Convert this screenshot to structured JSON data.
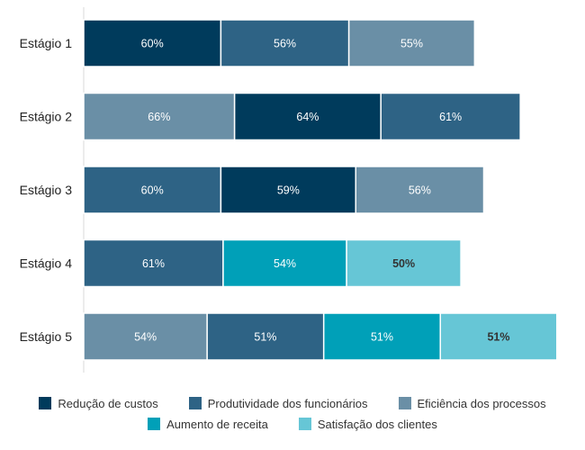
{
  "chart_data": {
    "type": "bar",
    "orientation": "horizontal",
    "stacked": true,
    "title": "",
    "xlabel": "",
    "ylabel": "",
    "grid": false,
    "legend_position": "bottom",
    "categories": [
      "Estágio 1",
      "Estágio 2",
      "Estágio 3",
      "Estágio 4",
      "Estágio 5"
    ],
    "series": [
      {
        "name": "Redução de custos",
        "color": "#003b5c",
        "text_color": "#ffffff"
      },
      {
        "name": "Produtividade dos funcionários",
        "color": "#2e6385",
        "text_color": "#ffffff"
      },
      {
        "name": "Eficiência dos processos",
        "color": "#6a8fa6",
        "text_color": "#ffffff"
      },
      {
        "name": "Aumento de receita",
        "color": "#00a0b8",
        "text_color": "#ffffff"
      },
      {
        "name": "Satisfação dos clientes",
        "color": "#66c6d6",
        "text_color": "#333333"
      }
    ],
    "stages": [
      {
        "category": "Estágio 1",
        "segments": [
          {
            "series": "Redução de custos",
            "value": 60,
            "label": "60%"
          },
          {
            "series": "Produtividade dos funcionários",
            "value": 56,
            "label": "56%"
          },
          {
            "series": "Eficiência dos processos",
            "value": 55,
            "label": "55%"
          }
        ]
      },
      {
        "category": "Estágio 2",
        "segments": [
          {
            "series": "Eficiência dos processos",
            "value": 66,
            "label": "66%"
          },
          {
            "series": "Redução de custos",
            "value": 64,
            "label": "64%"
          },
          {
            "series": "Produtividade dos funcionários",
            "value": 61,
            "label": "61%"
          }
        ]
      },
      {
        "category": "Estágio 3",
        "segments": [
          {
            "series": "Produtividade dos funcionários",
            "value": 60,
            "label": "60%"
          },
          {
            "series": "Redução de custos",
            "value": 59,
            "label": "59%"
          },
          {
            "series": "Eficiência dos processos",
            "value": 56,
            "label": "56%"
          }
        ]
      },
      {
        "category": "Estágio 4",
        "segments": [
          {
            "series": "Produtividade dos funcionários",
            "value": 61,
            "label": "61%"
          },
          {
            "series": "Aumento de receita",
            "value": 54,
            "label": "54%"
          },
          {
            "series": "Satisfação dos clientes",
            "value": 50,
            "label": "50%",
            "bold": true
          }
        ]
      },
      {
        "category": "Estágio 5",
        "segments": [
          {
            "series": "Eficiência dos processos",
            "value": 54,
            "label": "54%"
          },
          {
            "series": "Produtividade dos funcionários",
            "value": 51,
            "label": "51%"
          },
          {
            "series": "Aumento de receita",
            "value": 51,
            "label": "51%"
          },
          {
            "series": "Satisfação dos clientes",
            "value": 51,
            "label": "51%",
            "bold": true
          }
        ]
      }
    ]
  },
  "legend": {
    "row1": [
      {
        "label": "Redução de custos",
        "color": "#003b5c"
      },
      {
        "label": "Produtividade dos funcionários",
        "color": "#2e6385"
      },
      {
        "label": "Eficiência dos processos",
        "color": "#6a8fa6"
      }
    ],
    "row2": [
      {
        "label": "Aumento de receita",
        "color": "#00a0b8"
      },
      {
        "label": "Satisfação dos clientes",
        "color": "#66c6d6"
      }
    ]
  }
}
